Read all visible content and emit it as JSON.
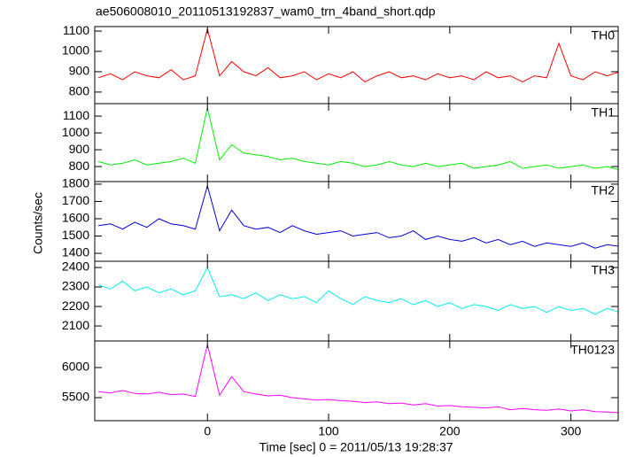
{
  "chart_data": [
    {
      "type": "line",
      "title": "ae506008010_20110513192837_wam0_trn_4band_short.qdp",
      "label": "TH0",
      "color": "#ff0000",
      "x": [
        -90,
        -80,
        -70,
        -60,
        -50,
        -40,
        -30,
        -20,
        -10,
        0,
        10,
        20,
        30,
        40,
        50,
        60,
        70,
        80,
        90,
        100,
        110,
        120,
        130,
        140,
        150,
        160,
        170,
        180,
        190,
        200,
        210,
        220,
        230,
        240,
        250,
        260,
        270,
        280,
        290,
        300,
        310,
        320,
        330,
        340
      ],
      "values": [
        870,
        890,
        860,
        900,
        880,
        870,
        910,
        860,
        880,
        1110,
        880,
        950,
        900,
        880,
        920,
        870,
        880,
        900,
        860,
        890,
        870,
        900,
        850,
        880,
        900,
        870,
        880,
        860,
        890,
        870,
        880,
        860,
        900,
        870,
        880,
        850,
        880,
        870,
        1040,
        880,
        860,
        900,
        880,
        900
      ],
      "xlim": [
        -93,
        339
      ],
      "xticks": [
        0,
        100,
        200,
        300
      ],
      "ylim": [
        743,
        1122
      ],
      "yticks": [
        800,
        900,
        1000,
        1100
      ]
    },
    {
      "type": "line",
      "label": "TH1",
      "color": "#00ee00",
      "x": [
        -90,
        -80,
        -70,
        -60,
        -50,
        -40,
        -30,
        -20,
        -10,
        0,
        10,
        20,
        30,
        40,
        50,
        60,
        70,
        80,
        90,
        100,
        110,
        120,
        130,
        140,
        150,
        160,
        170,
        180,
        190,
        200,
        210,
        220,
        230,
        240,
        250,
        260,
        270,
        280,
        290,
        300,
        310,
        320,
        330,
        340
      ],
      "values": [
        830,
        810,
        820,
        840,
        810,
        820,
        830,
        850,
        820,
        1150,
        840,
        930,
        880,
        870,
        860,
        840,
        850,
        830,
        820,
        810,
        830,
        820,
        800,
        810,
        830,
        810,
        800,
        820,
        800,
        810,
        820,
        790,
        800,
        810,
        830,
        790,
        800,
        810,
        790,
        800,
        810,
        790,
        800,
        780
      ],
      "xlim": [
        -93,
        339
      ],
      "xticks": [
        0,
        100,
        200,
        300
      ],
      "ylim": [
        711,
        1174
      ],
      "yticks": [
        800,
        900,
        1000,
        1100
      ]
    },
    {
      "type": "line",
      "label": "TH2",
      "color": "#0000dd",
      "ylabel": "Counts/sec",
      "x": [
        -90,
        -80,
        -70,
        -60,
        -50,
        -40,
        -30,
        -20,
        -10,
        0,
        10,
        20,
        30,
        40,
        50,
        60,
        70,
        80,
        90,
        100,
        110,
        120,
        130,
        140,
        150,
        160,
        170,
        180,
        190,
        200,
        210,
        220,
        230,
        240,
        250,
        260,
        270,
        280,
        290,
        300,
        310,
        320,
        330,
        340
      ],
      "values": [
        1560,
        1570,
        1540,
        1580,
        1550,
        1600,
        1570,
        1560,
        1540,
        1790,
        1530,
        1650,
        1560,
        1540,
        1550,
        1520,
        1560,
        1530,
        1510,
        1520,
        1530,
        1500,
        1510,
        1520,
        1490,
        1500,
        1530,
        1480,
        1500,
        1480,
        1470,
        1490,
        1460,
        1480,
        1450,
        1470,
        1440,
        1460,
        1450,
        1440,
        1460,
        1430,
        1450,
        1440
      ],
      "xlim": [
        -93,
        339
      ],
      "xticks": [
        0,
        100,
        200,
        300
      ],
      "ylim": [
        1354,
        1815
      ],
      "yticks": [
        1400,
        1500,
        1600,
        1700,
        1800
      ]
    },
    {
      "type": "line",
      "label": "TH3",
      "color": "#00eeee",
      "x": [
        -90,
        -80,
        -70,
        -60,
        -50,
        -40,
        -30,
        -20,
        -10,
        0,
        10,
        20,
        30,
        40,
        50,
        60,
        70,
        80,
        90,
        100,
        110,
        120,
        130,
        140,
        150,
        160,
        170,
        180,
        190,
        200,
        210,
        220,
        230,
        240,
        250,
        260,
        270,
        280,
        290,
        300,
        310,
        320,
        330,
        340
      ],
      "values": [
        2310,
        2290,
        2330,
        2280,
        2300,
        2270,
        2290,
        2260,
        2280,
        2400,
        2250,
        2260,
        2240,
        2270,
        2230,
        2260,
        2240,
        2250,
        2220,
        2280,
        2240,
        2210,
        2250,
        2230,
        2220,
        2240,
        2210,
        2230,
        2200,
        2220,
        2190,
        2210,
        2200,
        2180,
        2210,
        2190,
        2200,
        2170,
        2200,
        2180,
        2190,
        2160,
        2190,
        2170
      ],
      "xlim": [
        -93,
        339
      ],
      "xticks": [
        0,
        100,
        200,
        300
      ],
      "ylim": [
        2023,
        2432
      ],
      "yticks": [
        2100,
        2200,
        2300,
        2400
      ]
    },
    {
      "type": "line",
      "label": "TH0123",
      "color": "#ff00ff",
      "xlabel": "Time [sec] 0 = 2011/05/13 19:28:37",
      "x": [
        -90,
        -80,
        -70,
        -60,
        -50,
        -40,
        -30,
        -20,
        -10,
        0,
        10,
        20,
        30,
        40,
        50,
        60,
        70,
        80,
        90,
        100,
        110,
        120,
        130,
        140,
        150,
        160,
        170,
        180,
        190,
        200,
        210,
        220,
        230,
        240,
        250,
        260,
        270,
        280,
        290,
        300,
        310,
        320,
        330,
        340
      ],
      "values": [
        5600,
        5580,
        5620,
        5570,
        5560,
        5590,
        5550,
        5560,
        5520,
        6380,
        5540,
        5850,
        5600,
        5560,
        5530,
        5540,
        5500,
        5480,
        5460,
        5470,
        5450,
        5440,
        5420,
        5430,
        5400,
        5410,
        5380,
        5400,
        5360,
        5370,
        5350,
        5340,
        5330,
        5350,
        5300,
        5320,
        5300,
        5290,
        5310,
        5280,
        5300,
        5270,
        5260,
        5250
      ],
      "xlim": [
        -93,
        339
      ],
      "xticks": [
        0,
        100,
        200,
        300
      ],
      "ylim": [
        5118,
        6441
      ],
      "yticks": [
        5500,
        6000
      ]
    }
  ]
}
